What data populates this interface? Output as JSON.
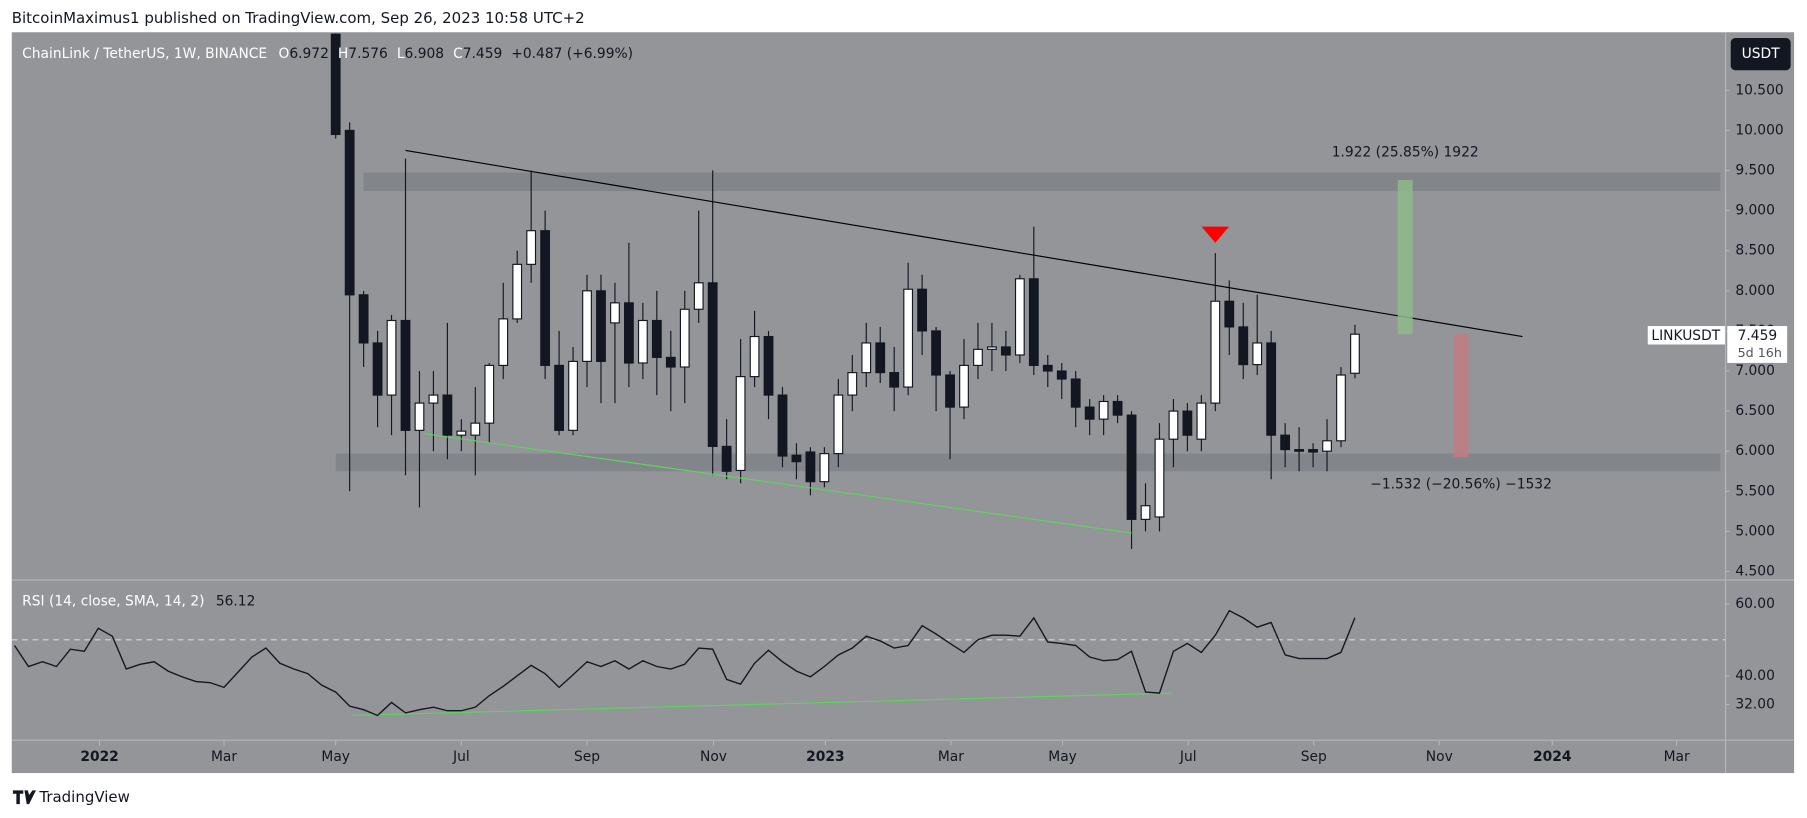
{
  "header": {
    "publisher": "BitcoinMaximus1 published on TradingView.com, Sep 26, 2023 10:58 UTC+2"
  },
  "footer": {
    "brand": "TradingView"
  },
  "chart_data": [
    {
      "type": "candlestick",
      "title": "ChainLink / TetherUS, 1W, BINANCE",
      "ohlc_labels": [
        "O",
        "H",
        "L",
        "C"
      ],
      "ohlc": [
        6.972,
        7.576,
        6.908,
        7.459
      ],
      "change": "+0.487 (+6.99%)",
      "currency": "USDT",
      "symbol": "LINKUSDT",
      "countdown": "5d 16h",
      "categories": [
        null,
        null,
        null,
        null,
        null,
        null,
        null,
        null,
        null,
        null,
        null,
        null,
        null,
        null,
        null,
        null,
        null,
        null,
        null,
        null,
        null,
        null,
        null,
        null,
        null,
        null,
        null,
        null,
        null,
        null,
        null,
        null,
        null,
        null,
        null,
        null,
        null,
        null,
        null,
        null,
        null,
        null,
        null,
        null,
        null,
        null,
        null,
        null,
        null,
        null,
        null,
        null,
        null,
        null,
        null,
        null,
        null,
        null,
        null,
        null,
        null,
        null,
        null,
        null,
        null,
        null,
        null,
        null,
        null,
        null,
        null,
        null,
        null,
        null,
        null,
        null,
        null,
        null,
        null,
        null,
        null,
        null,
        null,
        null,
        null,
        null,
        null,
        null,
        null,
        null,
        null,
        null,
        null,
        null,
        null,
        null,
        null
      ],
      "open": [
        null,
        null,
        null,
        null,
        null,
        null,
        null,
        null,
        null,
        null,
        null,
        null,
        null,
        null,
        null,
        null,
        null,
        null,
        null,
        null,
        null,
        null,
        null,
        11.2,
        10.0,
        7.95,
        7.35,
        6.7,
        7.63,
        6.26,
        6.6,
        6.7,
        6.2,
        6.2,
        6.35,
        7.07,
        7.65,
        8.33,
        8.75,
        7.07,
        6.26,
        7.12,
        8.0,
        7.6,
        7.85,
        7.1,
        7.63,
        7.17,
        7.05,
        7.77,
        8.1,
        6.06,
        5.76,
        6.93,
        7.43,
        6.7,
        5.95,
        5.99,
        5.62,
        5.97,
        6.7,
        6.98,
        7.35,
        6.98,
        6.8,
        8.02,
        7.5,
        6.95,
        6.55,
        7.07,
        7.27,
        7.3,
        7.2,
        8.15,
        7.07,
        7.0,
        6.9,
        6.55,
        6.4,
        6.62,
        6.45,
        5.15,
        5.18,
        6.15,
        6.5,
        6.15,
        6.6,
        7.87,
        7.55,
        7.08,
        7.35,
        6.2,
        6.02,
        6.02,
        6.0,
        6.13,
        6.972
      ],
      "high": [
        null,
        null,
        null,
        null,
        null,
        null,
        null,
        null,
        null,
        null,
        null,
        null,
        null,
        null,
        null,
        null,
        null,
        null,
        null,
        null,
        null,
        null,
        null,
        11.5,
        10.1,
        8.0,
        7.5,
        7.7,
        9.65,
        7.0,
        7.0,
        7.6,
        6.4,
        6.8,
        7.1,
        8.1,
        8.5,
        9.5,
        9.0,
        7.5,
        7.3,
        8.2,
        8.2,
        8.1,
        8.6,
        7.85,
        8.0,
        7.5,
        8.0,
        9.0,
        9.5,
        6.4,
        7.4,
        7.75,
        7.5,
        6.8,
        6.1,
        6.05,
        6.05,
        6.9,
        7.2,
        7.6,
        7.55,
        7.3,
        8.35,
        8.2,
        7.55,
        7.0,
        7.4,
        7.6,
        7.6,
        7.5,
        8.2,
        8.8,
        7.2,
        7.1,
        7.0,
        6.65,
        6.7,
        6.7,
        6.5,
        5.6,
        6.35,
        6.65,
        6.6,
        6.7,
        8.47,
        8.13,
        7.85,
        7.95,
        7.5,
        6.35,
        6.3,
        6.1,
        6.4,
        7.05,
        7.576
      ],
      "low": [
        null,
        null,
        null,
        null,
        null,
        null,
        null,
        null,
        null,
        null,
        null,
        null,
        null,
        null,
        null,
        null,
        null,
        null,
        null,
        null,
        null,
        null,
        null,
        9.9,
        5.5,
        7.05,
        6.3,
        6.2,
        5.7,
        5.3,
        6.0,
        5.9,
        6.0,
        5.7,
        6.1,
        6.9,
        7.6,
        8.1,
        6.9,
        6.2,
        6.2,
        6.8,
        6.6,
        6.6,
        6.8,
        6.9,
        6.7,
        6.5,
        6.6,
        7.6,
        5.7,
        5.65,
        5.6,
        6.8,
        6.4,
        5.8,
        5.65,
        5.45,
        5.55,
        5.8,
        6.5,
        6.8,
        6.85,
        6.5,
        6.7,
        7.2,
        6.5,
        5.9,
        6.4,
        6.9,
        7.0,
        7.0,
        7.1,
        6.95,
        6.8,
        6.65,
        6.3,
        6.2,
        6.2,
        6.35,
        4.78,
        5.0,
        5.0,
        5.8,
        6.0,
        6.0,
        6.5,
        7.2,
        6.9,
        6.95,
        5.65,
        5.8,
        5.75,
        5.8,
        5.75,
        6.05,
        6.908
      ],
      "close": [
        null,
        null,
        null,
        null,
        null,
        null,
        null,
        null,
        null,
        null,
        null,
        null,
        null,
        null,
        null,
        null,
        null,
        null,
        null,
        null,
        null,
        null,
        null,
        9.95,
        7.95,
        7.35,
        6.7,
        7.63,
        6.26,
        6.6,
        6.7,
        6.2,
        6.25,
        6.35,
        7.07,
        7.65,
        8.33,
        8.75,
        7.07,
        6.26,
        7.12,
        8.0,
        7.12,
        7.85,
        7.1,
        7.63,
        7.17,
        7.05,
        7.77,
        8.1,
        6.06,
        5.75,
        6.93,
        7.43,
        6.7,
        5.94,
        5.87,
        5.62,
        5.97,
        6.7,
        6.98,
        7.35,
        6.98,
        6.8,
        8.02,
        7.5,
        6.95,
        6.55,
        7.07,
        7.27,
        7.3,
        7.2,
        8.15,
        7.07,
        7.0,
        6.9,
        6.55,
        6.4,
        6.62,
        6.45,
        5.15,
        5.32,
        6.15,
        6.5,
        6.2,
        6.6,
        7.87,
        7.55,
        7.08,
        7.35,
        6.2,
        6.02,
        6.0,
        5.99,
        6.13,
        6.95,
        7.459
      ],
      "up_color": "#ffffff",
      "down_color": "#131722",
      "xlim": [
        -0.2,
        122.5
      ],
      "xticks": [
        {
          "value": 6.09,
          "label": "2022"
        },
        {
          "value": 15.0,
          "label": "Mar"
        },
        {
          "value": 23.0,
          "label": "May"
        },
        {
          "value": 32.0,
          "label": "Jul"
        },
        {
          "value": 41.0,
          "label": "Sep"
        },
        {
          "value": 50.06,
          "label": "Nov"
        },
        {
          "value": 58.07,
          "label": "2023"
        },
        {
          "value": 67.06,
          "label": "Mar"
        },
        {
          "value": 75.06,
          "label": "May"
        },
        {
          "value": 84.06,
          "label": "Jul"
        },
        {
          "value": 93.05,
          "label": "Sep"
        },
        {
          "value": 102.04,
          "label": "Nov"
        },
        {
          "value": 110.13,
          "label": "2024"
        },
        {
          "value": 119.04,
          "label": "Mar"
        }
      ],
      "ylim": [
        4.4,
        11.21
      ],
      "yticks": [
        {
          "value": 4.5,
          "label": "4.500"
        },
        {
          "value": 5.0,
          "label": "5.000"
        },
        {
          "value": 5.5,
          "label": "5.500"
        },
        {
          "value": 6.0,
          "label": "6.000"
        },
        {
          "value": 6.5,
          "label": "6.500"
        },
        {
          "value": 7.0,
          "label": "7.000"
        },
        {
          "value": 7.5,
          "label": "7.500"
        },
        {
          "value": 8.0,
          "label": "8.000"
        },
        {
          "value": 8.5,
          "label": "8.500"
        },
        {
          "value": 9.0,
          "label": "9.000"
        },
        {
          "value": 9.5,
          "label": "9.500"
        },
        {
          "value": 10.0,
          "label": "10.000"
        },
        {
          "value": 10.5,
          "label": "10.500"
        }
      ],
      "zones": [
        {
          "start": 23,
          "from": 5.75,
          "to": 5.97
        },
        {
          "start": 25,
          "from": 9.245,
          "to": 9.475
        }
      ],
      "trendlines": [
        {
          "color": "#000000",
          "points": [
            [
              28,
              9.75
            ],
            [
              108,
              7.43
            ]
          ]
        },
        {
          "color": "#5fd35f",
          "points": [
            [
              29.3,
              6.22
            ],
            [
              80,
              4.98
            ]
          ]
        }
      ],
      "marker": {
        "x": 86,
        "y": 8.7,
        "color": "#ff0000"
      },
      "projections": [
        {
          "label": "1.922 (25.85%) 1922",
          "x": 99.6,
          "from": 7.459,
          "to": 9.381,
          "color": "#8fba89"
        },
        {
          "label": "−1.532 (−20.56%) −1532",
          "x": 103.6,
          "from": 7.459,
          "to": 5.927,
          "color": "#c27c82"
        }
      ]
    },
    {
      "type": "line",
      "title": "RSI (14, close, SMA, 14, 2)",
      "color": "#131722",
      "values": [
        48.4,
        42.6,
        43.9,
        42.6,
        47.4,
        46.8,
        53.2,
        51.0,
        41.9,
        43.2,
        43.9,
        41.3,
        39.7,
        38.4,
        38.1,
        36.8,
        41.0,
        45.2,
        47.7,
        43.5,
        41.9,
        40.6,
        37.4,
        35.5,
        31.6,
        30.6,
        29.0,
        32.6,
        29.7,
        30.6,
        31.3,
        30.3,
        30.3,
        31.3,
        34.5,
        37.1,
        40.0,
        42.9,
        40.6,
        36.8,
        40.3,
        43.9,
        42.6,
        44.2,
        41.9,
        44.2,
        42.6,
        41.9,
        43.2,
        47.7,
        47.4,
        39.0,
        37.7,
        43.5,
        47.1,
        43.9,
        41.3,
        39.7,
        42.6,
        45.8,
        47.7,
        51.0,
        49.7,
        47.7,
        48.4,
        53.9,
        51.6,
        49.0,
        46.5,
        50.0,
        51.3,
        51.3,
        51.0,
        56.1,
        49.4,
        49.0,
        48.4,
        45.2,
        44.2,
        44.5,
        46.8,
        35.5,
        35.2,
        46.8,
        49.0,
        46.5,
        51.3,
        58.1,
        56.1,
        53.5,
        54.8,
        45.8,
        44.8,
        44.8,
        44.8,
        46.5,
        56.12
      ],
      "ylim": [
        22.6,
        66.1
      ],
      "yticks": [
        {
          "value": 32,
          "label": "32.00"
        },
        {
          "value": 40,
          "label": "40.00"
        },
        {
          "value": 60,
          "label": "60.00"
        }
      ],
      "midline": 50,
      "trendline": {
        "color": "#5fd35f",
        "points": [
          [
            24.1,
            29.0
          ],
          [
            82.9,
            35.2
          ]
        ]
      }
    }
  ]
}
